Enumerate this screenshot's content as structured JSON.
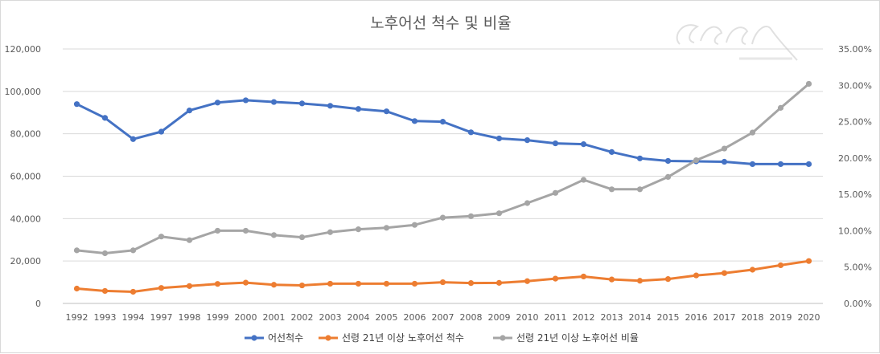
{
  "chart_data": {
    "type": "line",
    "title": "노후어선 척수 및 비율",
    "xlabel": "",
    "ylabel": "",
    "categories": [
      "1992",
      "1993",
      "1994",
      "1997",
      "1998",
      "1999",
      "2000",
      "2001",
      "2002",
      "2003",
      "2004",
      "2005",
      "2006",
      "2007",
      "2008",
      "2009",
      "2010",
      "2011",
      "2012",
      "2013",
      "2014",
      "2015",
      "2016",
      "2017",
      "2018",
      "2019",
      "2020"
    ],
    "ylim": [
      0,
      120000
    ],
    "y_ticks": [
      "0",
      "20,000",
      "40,000",
      "60,000",
      "80,000",
      "100,000",
      "120,000"
    ],
    "y2lim": [
      0,
      35
    ],
    "y2_ticks": [
      "0.00%",
      "5.00%",
      "10.00%",
      "15.00%",
      "20.00%",
      "25.00%",
      "30.00%",
      "35.00%"
    ],
    "grid": true,
    "legend_position": "bottom",
    "series": [
      {
        "name": "어선척수",
        "axis": "left",
        "color": "#4472c4",
        "values": [
          94000,
          87500,
          77500,
          81000,
          91000,
          94700,
          95800,
          95000,
          94300,
          93200,
          91700,
          90600,
          86000,
          85700,
          80700,
          77800,
          77000,
          75500,
          75100,
          71400,
          68400,
          67200,
          67000,
          66800,
          65700,
          65700,
          65700
        ]
      },
      {
        "name": "선령 21년 이상 노후어선 척수",
        "axis": "left",
        "color": "#ed7d31",
        "values": [
          7000,
          5900,
          5500,
          7300,
          8200,
          9200,
          9800,
          8800,
          8500,
          9300,
          9300,
          9300,
          9300,
          10000,
          9600,
          9700,
          10500,
          11700,
          12700,
          11300,
          10700,
          11500,
          13200,
          14300,
          15900,
          18000,
          20000
        ]
      },
      {
        "name": "선령 21년 이상 노후어선 비율",
        "axis": "right",
        "color": "#a5a5a5",
        "values": [
          7.3,
          6.9,
          7.3,
          9.2,
          8.7,
          10.0,
          10.0,
          9.4,
          9.1,
          9.8,
          10.2,
          10.4,
          10.8,
          11.8,
          12.0,
          12.4,
          13.8,
          15.2,
          17.0,
          15.7,
          15.7,
          17.4,
          19.7,
          21.3,
          23.5,
          26.9,
          30.2
        ]
      }
    ]
  }
}
